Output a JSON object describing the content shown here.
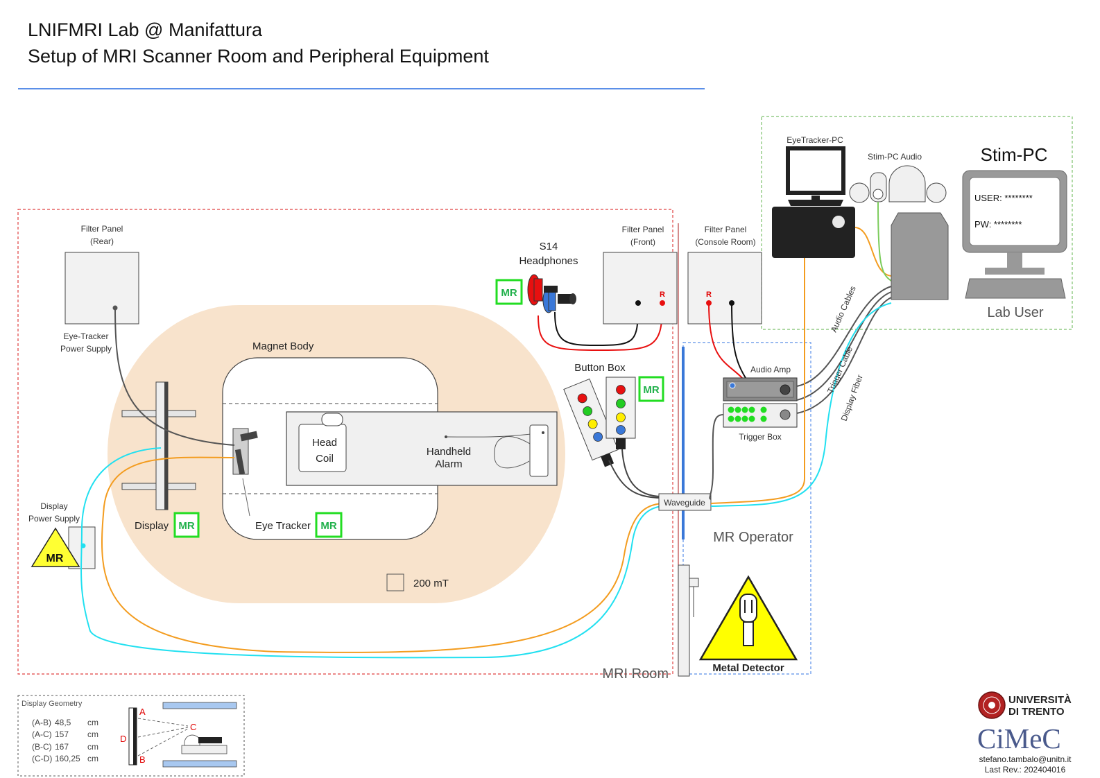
{
  "header": {
    "title_line1": "LNIFMRI Lab @ Manifattura",
    "title_line2": "Setup of MRI Scanner Room and Peripheral Equipment"
  },
  "mri_room": {
    "label": "MRI Room",
    "filter_panel_rear": [
      "Filter Panel",
      "(Rear)"
    ],
    "filter_panel_front": [
      "Filter Panel",
      "(Front)"
    ],
    "eye_tracker_power_supply": [
      "Eye-Tracker",
      "Power Supply"
    ],
    "display_power_supply": [
      "Display",
      "Power Supply"
    ],
    "magnet_body": "Magnet Body",
    "head_coil": [
      "Head",
      "Coil"
    ],
    "handheld_alarm": [
      "Handheld",
      "Alarm"
    ],
    "display_label": "Display",
    "eye_tracker_label": "Eye Tracker",
    "headphones": [
      "S14",
      "Headphones"
    ],
    "button_box": "Button Box",
    "field_strength": "200 mT",
    "waveguide": "Waveguide",
    "mr_badge": "MR",
    "connector_r": "R"
  },
  "console_room": {
    "filter_panel_console": [
      "Filter Panel",
      "(Console Room)"
    ],
    "audio_amp": "Audio Amp",
    "trigger_box": "Trigger Box",
    "operator_label": "MR Operator",
    "metal_detector": "Metal Detector",
    "cable_labels": [
      "Audio Cables",
      "Trigger Cable",
      "Display Fiber"
    ]
  },
  "lab_user": {
    "eyetracker_pc": "EyeTracker-PC",
    "stim_pc_audio": "Stim-PC Audio",
    "stim_pc": "Stim-PC",
    "user_field": "USER: ********",
    "pw_field": "PW: ********",
    "label": "Lab User"
  },
  "display_geometry": {
    "title": "Display Geometry",
    "rows": [
      {
        "pair": "(A-B)",
        "value": "48,5",
        "unit": "cm"
      },
      {
        "pair": "(A-C)",
        "value": "157",
        "unit": "cm"
      },
      {
        "pair": "(B-C)",
        "value": "167",
        "unit": "cm"
      },
      {
        "pair": "(C-D)",
        "value": "160,25",
        "unit": "cm"
      }
    ],
    "points": [
      "A",
      "B",
      "C",
      "D"
    ]
  },
  "footer": {
    "university_line1": "UNIVERSITÀ",
    "university_line2": "DI TRENTO",
    "cimec": "CiMeC",
    "email": "stefano.tambalo@unitn.it",
    "revision": "Last Rev.: 202404016"
  },
  "colors": {
    "accent_blue": "#5b8fe8",
    "mr_green": "#22dd22",
    "cable_orange": "#f39c1f",
    "cable_cyan": "#22e0f0",
    "cable_green": "#7ccc5c",
    "field_zone": "#f8e3cc",
    "room_border": "#e04040",
    "lab_border": "#7cc06c",
    "warning_yellow": "#ffff00"
  }
}
